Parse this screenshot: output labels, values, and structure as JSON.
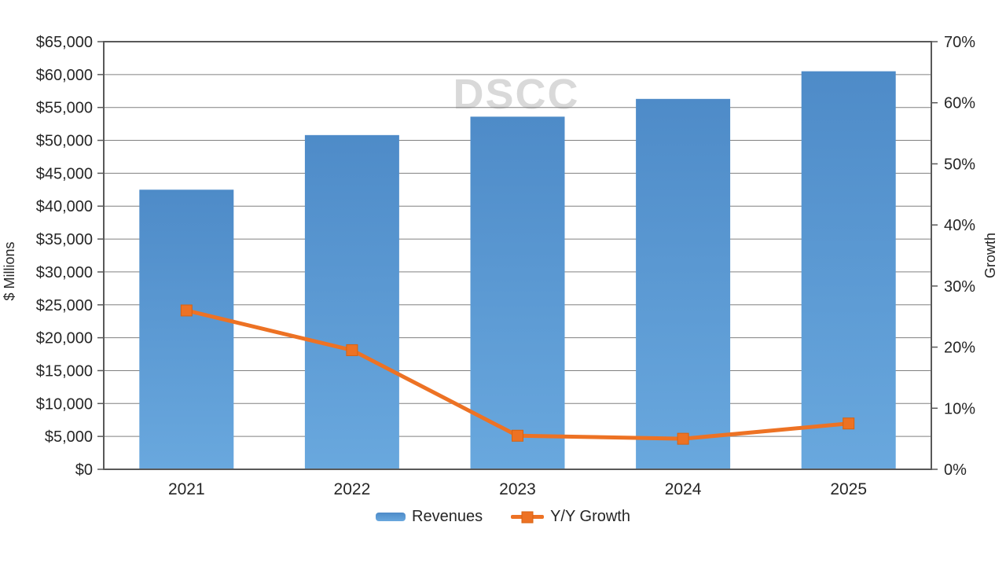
{
  "watermark": "DSCC",
  "colors": {
    "bar_top": "#4e8bc8",
    "bar_bottom": "#69a8de",
    "line": "#ed7224",
    "marker_border": "#d8620f",
    "gridline": "#808080",
    "axis": "#595959",
    "text": "#262626",
    "watermark": "#d9d9d9"
  },
  "chart_data": {
    "type": "bar",
    "subtype": "bar+line-combo",
    "categories": [
      "2021",
      "2022",
      "2023",
      "2024",
      "2025"
    ],
    "series": [
      {
        "name": "Revenues",
        "type": "bar",
        "axis": "left",
        "unit": "$ Millions",
        "values": [
          42500,
          50800,
          53600,
          56300,
          60500
        ]
      },
      {
        "name": "Y/Y Growth",
        "type": "line",
        "axis": "right",
        "unit": "%",
        "values": [
          26,
          19.5,
          5.5,
          5,
          7.5
        ]
      }
    ],
    "left_axis": {
      "title": "$ Millions",
      "min": 0,
      "max": 65000,
      "step": 5000,
      "tick_labels": [
        "$0",
        "$5,000",
        "$10,000",
        "$15,000",
        "$20,000",
        "$25,000",
        "$30,000",
        "$35,000",
        "$40,000",
        "$45,000",
        "$50,000",
        "$55,000",
        "$60,000",
        "$65,000"
      ]
    },
    "right_axis": {
      "title": "Growth",
      "min": 0,
      "max": 70,
      "step": 10,
      "tick_labels": [
        "0%",
        "10%",
        "20%",
        "30%",
        "40%",
        "50%",
        "60%",
        "70%"
      ]
    },
    "grid": true,
    "legend_position": "bottom",
    "legend": [
      {
        "label": "Revenues",
        "swatch": "bar"
      },
      {
        "label": "Y/Y Growth",
        "swatch": "line"
      }
    ]
  }
}
